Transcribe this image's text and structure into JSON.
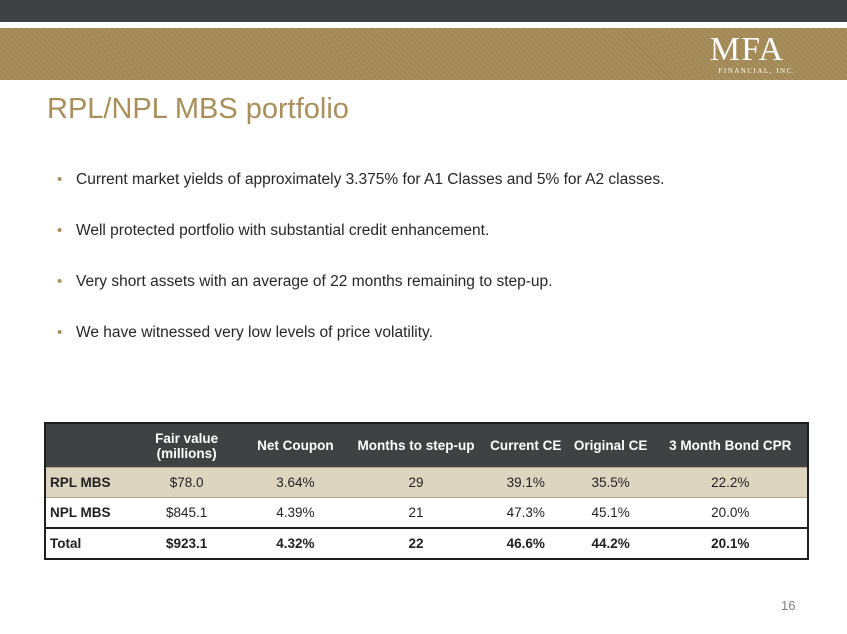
{
  "logo": {
    "main": "MFA",
    "sub": "FINANCIAL, INC."
  },
  "title": "RPL/NPL MBS portfolio",
  "bullets": [
    "Current market yields of approximately 3.375% for A1 Classes and 5% for A2 classes.",
    "Well protected portfolio with substantial credit enhancement.",
    "Very short assets with an average of 22 months remaining to step-up.",
    "We have witnessed very low levels of price volatility."
  ],
  "table": {
    "headers": [
      "",
      "Fair value (millions)",
      "Net Coupon",
      "Months to step-up",
      "Current CE",
      "Original CE",
      "3 Month Bond CPR"
    ],
    "rows": [
      {
        "label": "RPL MBS",
        "fair_value": "$78.0",
        "net_coupon": "3.64%",
        "months": "29",
        "current_ce": "39.1%",
        "original_ce": "35.5%",
        "cpr": "22.2%"
      },
      {
        "label": "NPL MBS",
        "fair_value": "$845.1",
        "net_coupon": "4.39%",
        "months": "21",
        "current_ce": "47.3%",
        "original_ce": "45.1%",
        "cpr": "20.0%"
      },
      {
        "label": "Total",
        "fair_value": "$923.1",
        "net_coupon": "4.32%",
        "months": "22",
        "current_ce": "46.6%",
        "original_ce": "44.2%",
        "cpr": "20.1%"
      }
    ]
  },
  "page_number": "16",
  "colors": {
    "gold": "#a88f5b",
    "dark": "#3f4143",
    "row_shade": "#ded5c0"
  }
}
